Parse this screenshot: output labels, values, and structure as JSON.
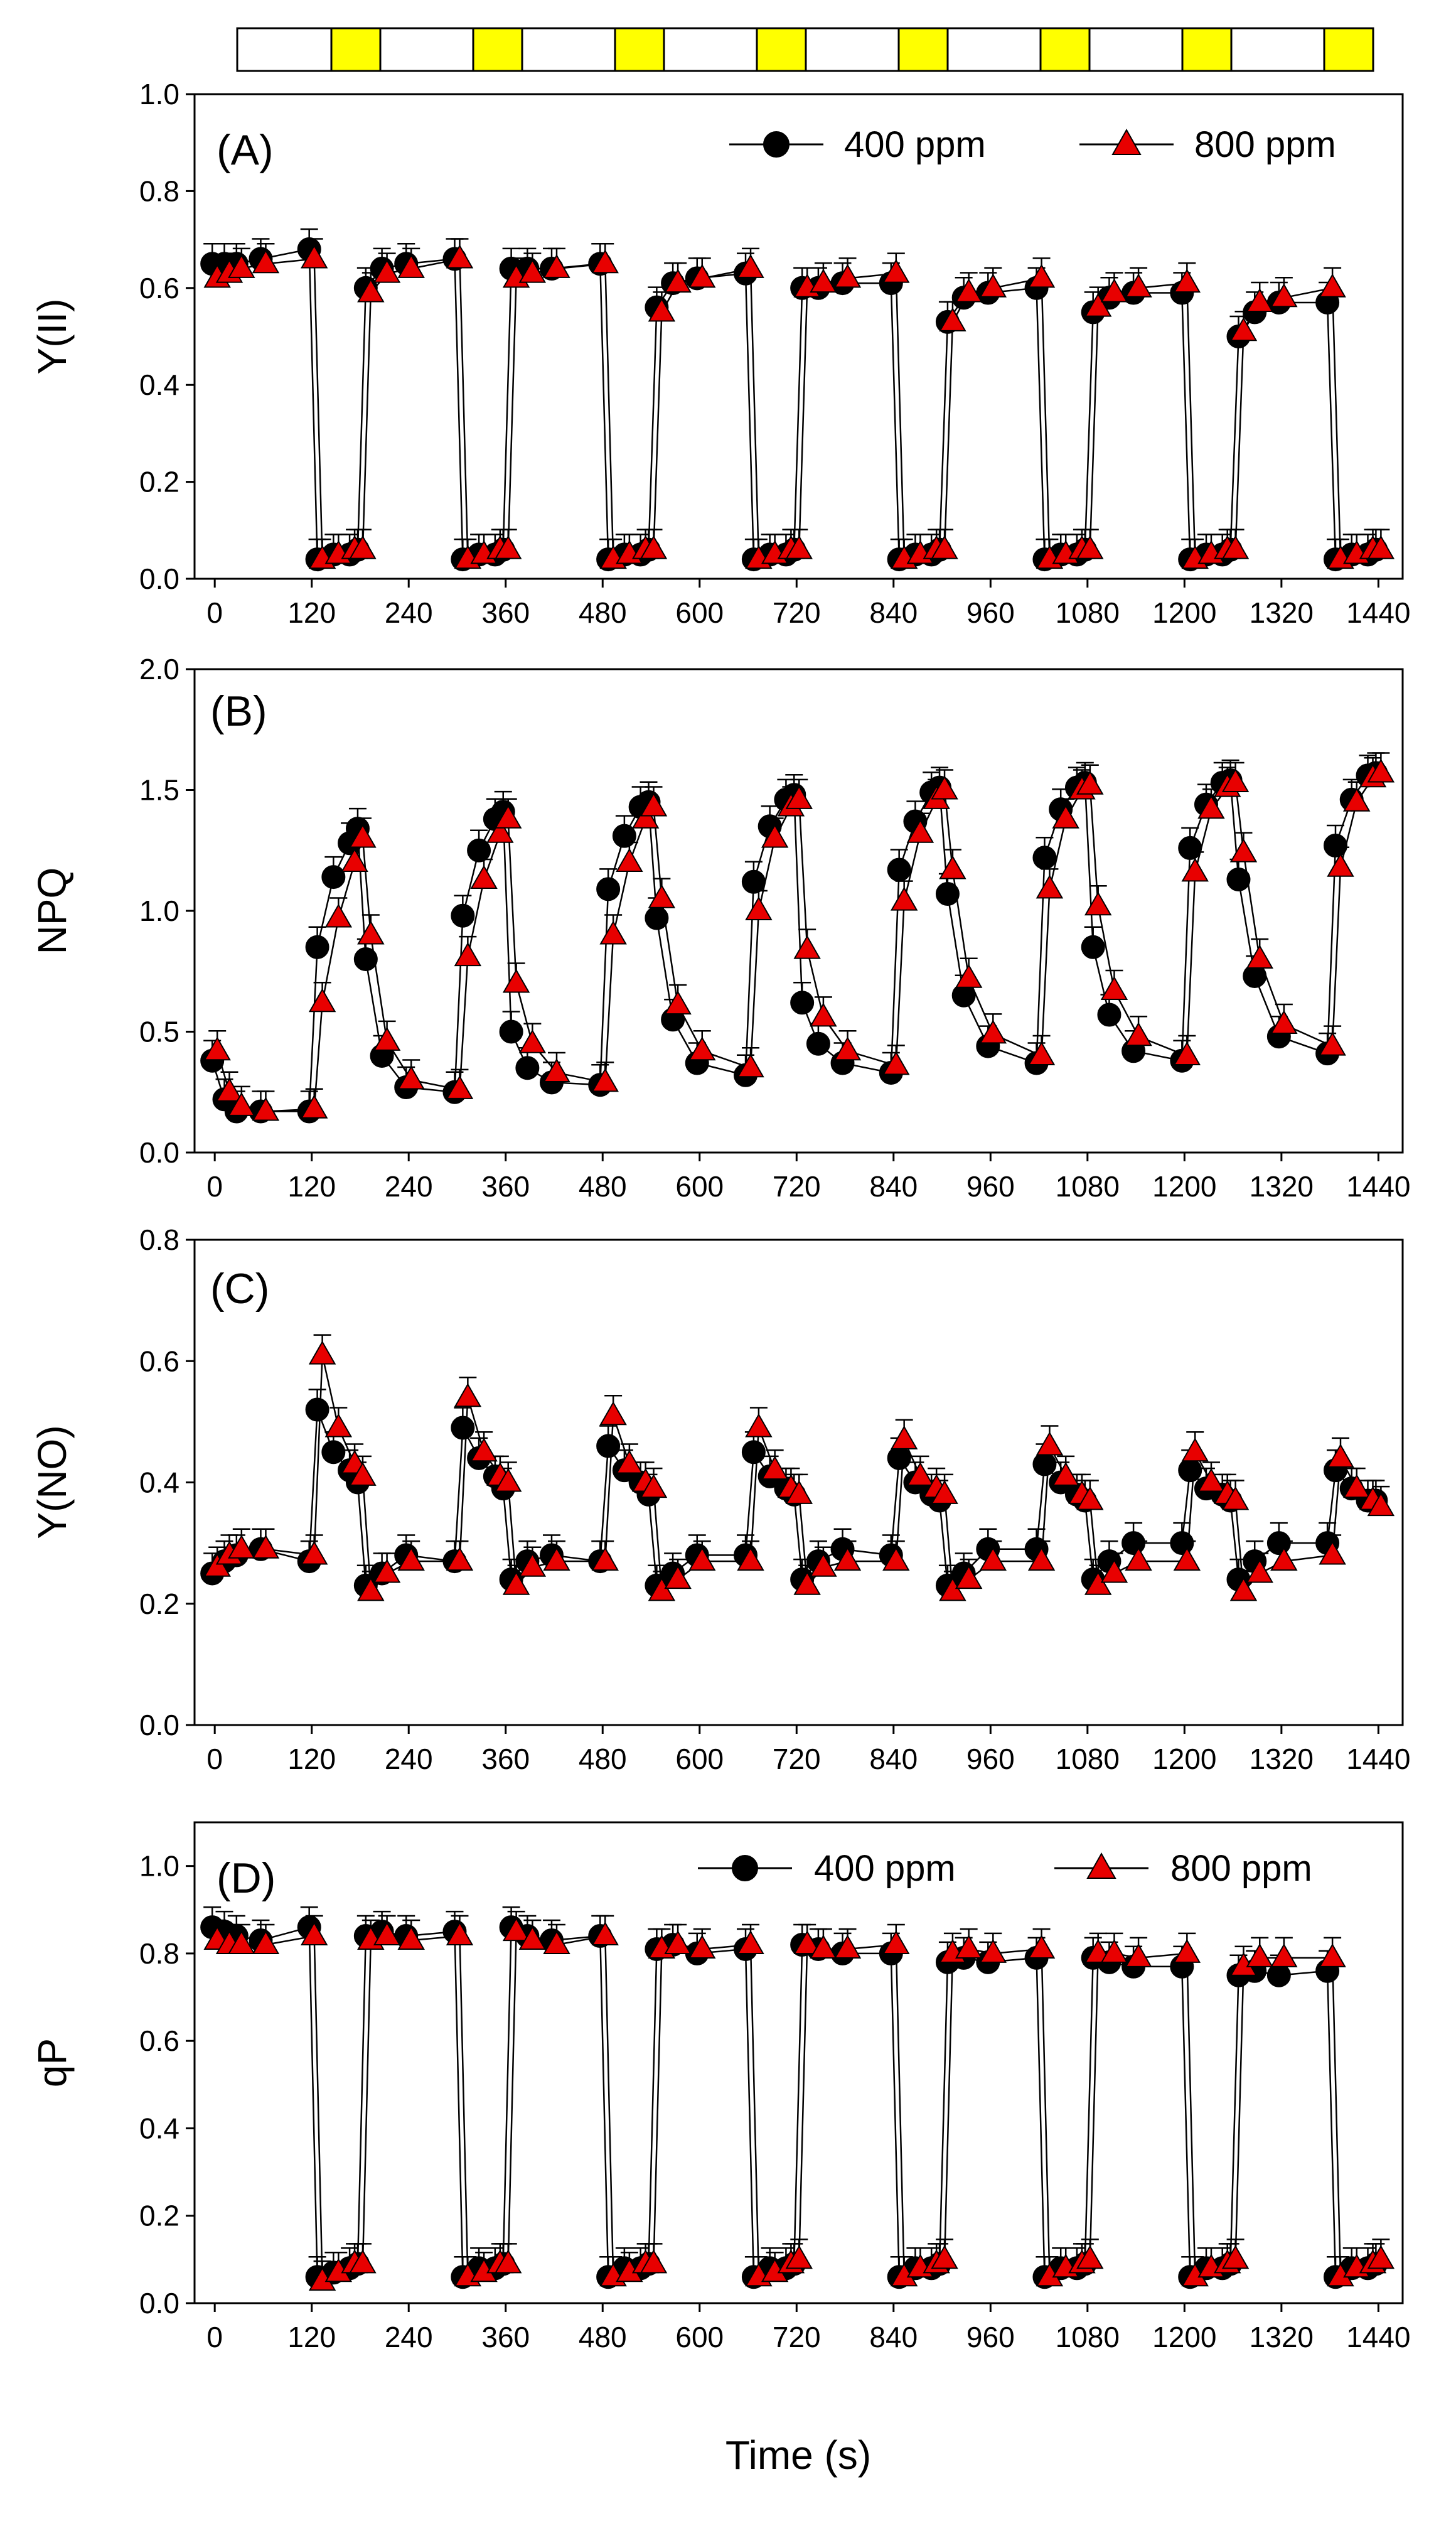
{
  "figure": {
    "light_bar": [
      {
        "light": false
      },
      {
        "light": true
      },
      {
        "light": false
      },
      {
        "light": true
      },
      {
        "light": false
      },
      {
        "light": true
      },
      {
        "light": false
      },
      {
        "light": true
      },
      {
        "light": false
      },
      {
        "light": true
      },
      {
        "light": false
      },
      {
        "light": true
      },
      {
        "light": false
      },
      {
        "light": true
      },
      {
        "light": false
      },
      {
        "light": true
      }
    ],
    "xlabel": "Time (s)",
    "x_ticks": [
      0,
      120,
      240,
      360,
      480,
      600,
      720,
      840,
      960,
      1080,
      1200,
      1320,
      1440
    ],
    "xlim": [
      -25,
      1470
    ],
    "colors": {
      "series_400": "#000000",
      "series_800": "#e80000",
      "light_on": "#ffff00",
      "light_off": "#ffffff"
    }
  },
  "legend": {
    "s400": "400 ppm",
    "s800": "800 ppm"
  },
  "chart_data": [
    {
      "type": "line",
      "panel_label": "(A)",
      "ylabel": "Y(II)",
      "ylim": [
        0,
        1.0
      ],
      "y_ticks": [
        "0.0",
        "0.2",
        "0.4",
        "0.6",
        "0.8",
        "1.0"
      ],
      "legend": true,
      "x": [
        0,
        15,
        30,
        60,
        120,
        130,
        150,
        170,
        180,
        190,
        210,
        240,
        300,
        310,
        330,
        350,
        360,
        370,
        390,
        420,
        480,
        490,
        510,
        530,
        540,
        550,
        570,
        600,
        660,
        670,
        690,
        710,
        720,
        730,
        750,
        780,
        840,
        850,
        870,
        890,
        900,
        910,
        930,
        960,
        1020,
        1030,
        1050,
        1070,
        1080,
        1090,
        1110,
        1140,
        1200,
        1210,
        1230,
        1250,
        1260,
        1270,
        1290,
        1320,
        1380,
        1390,
        1410,
        1430,
        1440
      ],
      "series": [
        {
          "name": "400 ppm",
          "values": [
            0.65,
            0.65,
            0.65,
            0.66,
            0.68,
            0.04,
            0.05,
            0.05,
            0.06,
            0.6,
            0.64,
            0.65,
            0.66,
            0.04,
            0.05,
            0.05,
            0.06,
            0.64,
            0.64,
            0.64,
            0.65,
            0.04,
            0.05,
            0.05,
            0.06,
            0.56,
            0.61,
            0.62,
            0.63,
            0.04,
            0.05,
            0.05,
            0.06,
            0.6,
            0.6,
            0.61,
            0.61,
            0.04,
            0.05,
            0.05,
            0.06,
            0.53,
            0.58,
            0.59,
            0.6,
            0.04,
            0.05,
            0.05,
            0.06,
            0.55,
            0.58,
            0.59,
            0.59,
            0.04,
            0.05,
            0.05,
            0.06,
            0.5,
            0.55,
            0.57,
            0.57,
            0.04,
            0.05,
            0.05,
            0.06
          ]
        },
        {
          "name": "800 ppm",
          "values": [
            0.62,
            0.63,
            0.64,
            0.65,
            0.66,
            0.04,
            0.05,
            0.06,
            0.06,
            0.59,
            0.63,
            0.64,
            0.66,
            0.04,
            0.05,
            0.06,
            0.06,
            0.62,
            0.63,
            0.64,
            0.65,
            0.04,
            0.05,
            0.06,
            0.06,
            0.55,
            0.61,
            0.62,
            0.64,
            0.04,
            0.05,
            0.06,
            0.06,
            0.6,
            0.61,
            0.62,
            0.63,
            0.04,
            0.05,
            0.06,
            0.06,
            0.53,
            0.59,
            0.6,
            0.62,
            0.04,
            0.05,
            0.06,
            0.06,
            0.56,
            0.59,
            0.6,
            0.61,
            0.04,
            0.05,
            0.06,
            0.06,
            0.51,
            0.57,
            0.58,
            0.6,
            0.04,
            0.05,
            0.06,
            0.06
          ]
        }
      ]
    },
    {
      "type": "line",
      "panel_label": "(B)",
      "ylabel": "NPQ",
      "ylim": [
        0,
        2.0
      ],
      "y_ticks": [
        "0.0",
        "0.5",
        "1.0",
        "1.5",
        "2.0"
      ],
      "legend": false,
      "x": [
        0,
        15,
        30,
        60,
        120,
        130,
        150,
        170,
        180,
        190,
        210,
        240,
        300,
        310,
        330,
        350,
        360,
        370,
        390,
        420,
        480,
        490,
        510,
        530,
        540,
        550,
        570,
        600,
        660,
        670,
        690,
        710,
        720,
        730,
        750,
        780,
        840,
        850,
        870,
        890,
        900,
        910,
        930,
        960,
        1020,
        1030,
        1050,
        1070,
        1080,
        1090,
        1110,
        1140,
        1200,
        1210,
        1230,
        1250,
        1260,
        1270,
        1290,
        1320,
        1380,
        1390,
        1410,
        1430,
        1440
      ],
      "series": [
        {
          "name": "400 ppm",
          "values": [
            0.38,
            0.22,
            0.17,
            0.17,
            0.17,
            0.85,
            1.14,
            1.28,
            1.34,
            0.8,
            0.4,
            0.27,
            0.25,
            0.98,
            1.25,
            1.38,
            1.41,
            0.5,
            0.35,
            0.29,
            0.28,
            1.09,
            1.31,
            1.43,
            1.45,
            0.97,
            0.55,
            0.37,
            0.32,
            1.12,
            1.35,
            1.46,
            1.48,
            0.62,
            0.45,
            0.37,
            0.33,
            1.17,
            1.37,
            1.49,
            1.51,
            1.07,
            0.65,
            0.44,
            0.37,
            1.22,
            1.42,
            1.51,
            1.53,
            0.85,
            0.57,
            0.42,
            0.38,
            1.26,
            1.44,
            1.53,
            1.54,
            1.13,
            0.73,
            0.48,
            0.41,
            1.27,
            1.46,
            1.56,
            1.57
          ]
        },
        {
          "name": "800 ppm",
          "values": [
            0.42,
            0.25,
            0.19,
            0.17,
            0.18,
            0.62,
            0.97,
            1.2,
            1.3,
            0.9,
            0.46,
            0.3,
            0.26,
            0.81,
            1.13,
            1.32,
            1.38,
            0.7,
            0.45,
            0.33,
            0.29,
            0.9,
            1.2,
            1.38,
            1.43,
            1.05,
            0.61,
            0.42,
            0.35,
            1.0,
            1.3,
            1.43,
            1.46,
            0.84,
            0.56,
            0.42,
            0.36,
            1.04,
            1.32,
            1.46,
            1.5,
            1.17,
            0.72,
            0.49,
            0.4,
            1.09,
            1.38,
            1.5,
            1.52,
            1.02,
            0.67,
            0.48,
            0.4,
            1.16,
            1.42,
            1.51,
            1.53,
            1.24,
            0.8,
            0.53,
            0.44,
            1.18,
            1.45,
            1.55,
            1.57
          ]
        }
      ]
    },
    {
      "type": "line",
      "panel_label": "(C)",
      "ylabel": "Y(NO)",
      "ylim": [
        0,
        0.8
      ],
      "y_ticks": [
        "0.0",
        "0.2",
        "0.4",
        "0.6",
        "0.8"
      ],
      "legend": false,
      "x": [
        0,
        15,
        30,
        60,
        120,
        130,
        150,
        170,
        180,
        190,
        210,
        240,
        300,
        310,
        330,
        350,
        360,
        370,
        390,
        420,
        480,
        490,
        510,
        530,
        540,
        550,
        570,
        600,
        660,
        670,
        690,
        710,
        720,
        730,
        750,
        780,
        840,
        850,
        870,
        890,
        900,
        910,
        930,
        960,
        1020,
        1030,
        1050,
        1070,
        1080,
        1090,
        1110,
        1140,
        1200,
        1210,
        1230,
        1250,
        1260,
        1270,
        1290,
        1320,
        1380,
        1390,
        1410,
        1430,
        1440
      ],
      "series": [
        {
          "name": "400 ppm",
          "values": [
            0.25,
            0.27,
            0.28,
            0.29,
            0.27,
            0.52,
            0.45,
            0.42,
            0.4,
            0.23,
            0.25,
            0.28,
            0.27,
            0.49,
            0.44,
            0.41,
            0.39,
            0.24,
            0.27,
            0.28,
            0.27,
            0.46,
            0.42,
            0.4,
            0.38,
            0.23,
            0.25,
            0.28,
            0.28,
            0.45,
            0.41,
            0.39,
            0.38,
            0.24,
            0.27,
            0.29,
            0.28,
            0.44,
            0.4,
            0.38,
            0.37,
            0.23,
            0.25,
            0.29,
            0.29,
            0.43,
            0.4,
            0.38,
            0.37,
            0.24,
            0.27,
            0.3,
            0.3,
            0.42,
            0.39,
            0.38,
            0.37,
            0.24,
            0.27,
            0.3,
            0.3,
            0.42,
            0.39,
            0.37,
            0.37
          ]
        },
        {
          "name": "800 ppm",
          "values": [
            0.26,
            0.28,
            0.29,
            0.29,
            0.28,
            0.61,
            0.49,
            0.43,
            0.41,
            0.22,
            0.25,
            0.27,
            0.27,
            0.54,
            0.45,
            0.41,
            0.4,
            0.23,
            0.26,
            0.27,
            0.27,
            0.51,
            0.43,
            0.4,
            0.39,
            0.22,
            0.24,
            0.27,
            0.27,
            0.49,
            0.42,
            0.39,
            0.38,
            0.23,
            0.26,
            0.27,
            0.27,
            0.47,
            0.41,
            0.39,
            0.38,
            0.22,
            0.24,
            0.27,
            0.27,
            0.46,
            0.41,
            0.38,
            0.37,
            0.23,
            0.25,
            0.27,
            0.27,
            0.45,
            0.4,
            0.38,
            0.37,
            0.22,
            0.25,
            0.27,
            0.28,
            0.44,
            0.39,
            0.37,
            0.36
          ]
        }
      ]
    },
    {
      "type": "line",
      "panel_label": "(D)",
      "ylabel": "qP",
      "ylim": [
        0,
        1.1
      ],
      "y_ticks": [
        "0.0",
        "0.2",
        "0.4",
        "0.6",
        "0.8",
        "1.0"
      ],
      "legend": true,
      "x": [
        0,
        15,
        30,
        60,
        120,
        130,
        150,
        170,
        180,
        190,
        210,
        240,
        300,
        310,
        330,
        350,
        360,
        370,
        390,
        420,
        480,
        490,
        510,
        530,
        540,
        550,
        570,
        600,
        660,
        670,
        690,
        710,
        720,
        730,
        750,
        780,
        840,
        850,
        870,
        890,
        900,
        910,
        930,
        960,
        1020,
        1030,
        1050,
        1070,
        1080,
        1090,
        1110,
        1140,
        1200,
        1210,
        1230,
        1250,
        1260,
        1270,
        1290,
        1320,
        1380,
        1390,
        1410,
        1430,
        1440
      ],
      "series": [
        {
          "name": "400 ppm",
          "values": [
            0.86,
            0.85,
            0.84,
            0.83,
            0.86,
            0.06,
            0.07,
            0.08,
            0.09,
            0.84,
            0.85,
            0.84,
            0.85,
            0.06,
            0.08,
            0.08,
            0.09,
            0.86,
            0.84,
            0.83,
            0.84,
            0.06,
            0.08,
            0.08,
            0.09,
            0.81,
            0.82,
            0.8,
            0.81,
            0.06,
            0.08,
            0.08,
            0.09,
            0.82,
            0.81,
            0.8,
            0.8,
            0.06,
            0.08,
            0.08,
            0.09,
            0.78,
            0.79,
            0.78,
            0.79,
            0.06,
            0.08,
            0.08,
            0.09,
            0.79,
            0.78,
            0.77,
            0.77,
            0.06,
            0.08,
            0.08,
            0.09,
            0.75,
            0.76,
            0.75,
            0.76,
            0.06,
            0.08,
            0.08,
            0.09
          ]
        },
        {
          "name": "800 ppm",
          "values": [
            0.83,
            0.82,
            0.82,
            0.82,
            0.84,
            0.05,
            0.07,
            0.09,
            0.09,
            0.83,
            0.84,
            0.83,
            0.84,
            0.06,
            0.07,
            0.09,
            0.09,
            0.85,
            0.83,
            0.82,
            0.84,
            0.06,
            0.07,
            0.09,
            0.09,
            0.81,
            0.82,
            0.81,
            0.82,
            0.06,
            0.07,
            0.09,
            0.1,
            0.82,
            0.81,
            0.81,
            0.82,
            0.06,
            0.08,
            0.09,
            0.1,
            0.8,
            0.81,
            0.8,
            0.81,
            0.06,
            0.08,
            0.09,
            0.1,
            0.8,
            0.8,
            0.79,
            0.8,
            0.06,
            0.08,
            0.09,
            0.1,
            0.77,
            0.79,
            0.79,
            0.79,
            0.06,
            0.08,
            0.09,
            0.1
          ]
        }
      ]
    }
  ]
}
